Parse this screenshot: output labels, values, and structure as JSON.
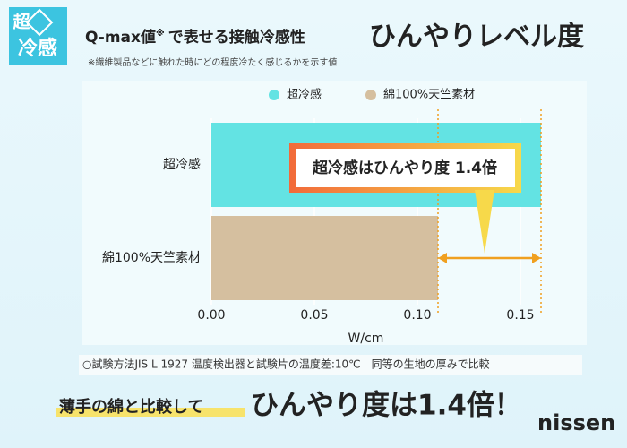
{
  "logo": {
    "top": "超",
    "bottom": "冷感"
  },
  "header": {
    "title_start": "Q-max値",
    "title_mark": "※",
    "title_rest": "で表せる接触冷感性",
    "headline": "ひんやりレベル度",
    "note": "※繊維製品などに触れた時にどの程度冷たく感じるかを示す値"
  },
  "chart_data": {
    "type": "hbar",
    "categories": [
      "超冷感",
      "綿100%天竺素材"
    ],
    "values": [
      0.16,
      0.11
    ],
    "colors": [
      "#63e3e3",
      "#d5bf9f"
    ],
    "xlabel": "W/cm",
    "xlim": [
      0,
      0.18
    ],
    "xticks": [
      {
        "value": 0,
        "label": "0.00"
      },
      {
        "value": 0.05,
        "label": "0.05"
      },
      {
        "value": 0.1,
        "label": "0.10"
      },
      {
        "value": 0.15,
        "label": "0.15"
      }
    ],
    "grid": true,
    "annotation": "超冷感はひんやり度 1.4倍"
  },
  "footnote": "○試験方法JIS L 1927 温度検出器と試験片の温度差:10℃　同等の生地の厚みで比較",
  "footer": {
    "lead": "薄手の綿と比較して",
    "claim": "ひんやり度は1.4倍！",
    "brand": "nissen"
  }
}
